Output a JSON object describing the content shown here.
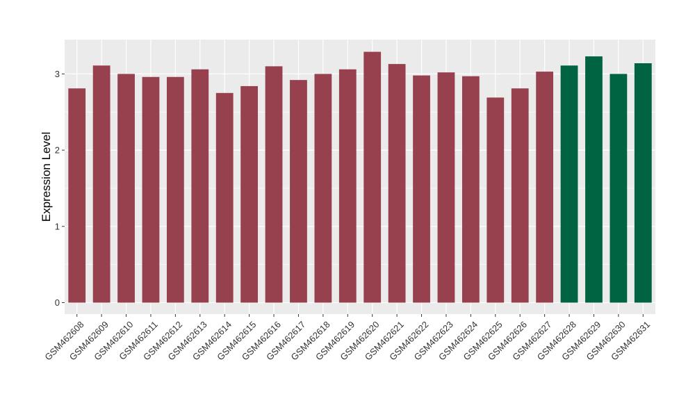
{
  "chart_data": {
    "type": "bar",
    "title": "",
    "xlabel": "",
    "ylabel": "Expression Level",
    "ylim": [
      -0.15,
      3.45
    ],
    "yticks": [
      0,
      1,
      2,
      3
    ],
    "grid": true,
    "legend": "none",
    "categories": [
      "GSM462608",
      "GSM462609",
      "GSM462610",
      "GSM462611",
      "GSM462612",
      "GSM462613",
      "GSM462614",
      "GSM462615",
      "GSM462616",
      "GSM462617",
      "GSM462618",
      "GSM462619",
      "GSM462620",
      "GSM462621",
      "GSM462622",
      "GSM462623",
      "GSM462624",
      "GSM462625",
      "GSM462626",
      "GSM462627",
      "GSM462628",
      "GSM462629",
      "GSM462630",
      "GSM462631"
    ],
    "values": [
      2.81,
      3.11,
      3.0,
      2.96,
      2.96,
      3.06,
      2.75,
      2.84,
      3.1,
      2.92,
      3.0,
      3.06,
      3.29,
      3.13,
      2.98,
      3.02,
      2.97,
      2.69,
      2.81,
      3.03,
      3.11,
      3.23,
      3.0,
      3.14
    ],
    "groups": [
      "a",
      "a",
      "a",
      "a",
      "a",
      "a",
      "a",
      "a",
      "a",
      "a",
      "a",
      "a",
      "a",
      "a",
      "a",
      "a",
      "a",
      "a",
      "a",
      "a",
      "b",
      "b",
      "b",
      "b"
    ],
    "colors": {
      "a": "#97414f",
      "b": "#006442"
    },
    "panel_bg": "#ebebeb",
    "grid_color": "#ffffff"
  }
}
